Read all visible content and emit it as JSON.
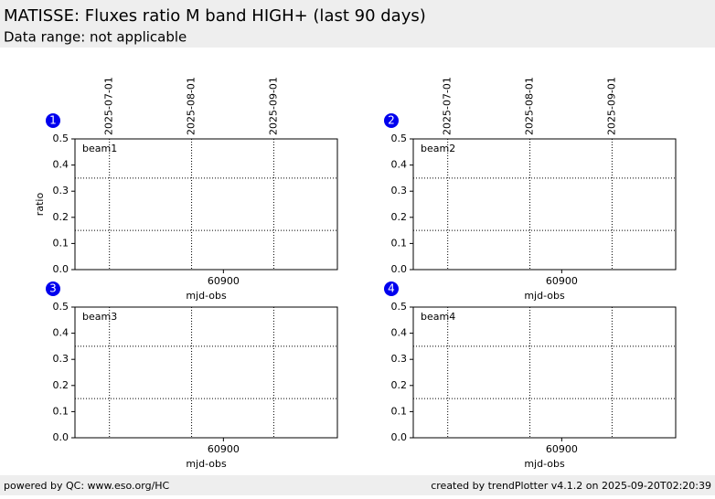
{
  "header": {
    "title": "MATISSE: Fluxes ratio M band HIGH+ (last 90 days)",
    "subtitle": "Data range: not applicable"
  },
  "footer": {
    "left": "powered by QC: www.eso.org/HC",
    "right": "created by trendPlotter v4.1.2 on 2025-09-20T02:20:39"
  },
  "chart_data": [
    {
      "type": "line",
      "badge": "1",
      "label": "beam1",
      "xlabel": "mjd-obs",
      "ylabel": "ratio",
      "series": [],
      "xlim": [
        60844,
        60943
      ],
      "xticks": [
        60900
      ],
      "x2ticks": [
        {
          "value": 60857,
          "label": "2025-07-01"
        },
        {
          "value": 60888,
          "label": "2025-08-01"
        },
        {
          "value": 60919,
          "label": "2025-09-01"
        }
      ],
      "ylim": [
        0,
        0.5
      ],
      "yticks": [
        {
          "value": 0,
          "label": "0.0"
        },
        0.1,
        0.2,
        0.3,
        0.4,
        0.5
      ],
      "reference_lines": [
        0.15,
        0.35
      ]
    },
    {
      "type": "line",
      "badge": "2",
      "label": "beam2",
      "xlabel": "mjd-obs",
      "series": [],
      "xlim": [
        60844,
        60943
      ],
      "xticks": [
        60900
      ],
      "x2ticks": [
        {
          "value": 60857,
          "label": "2025-07-01"
        },
        {
          "value": 60888,
          "label": "2025-08-01"
        },
        {
          "value": 60919,
          "label": "2025-09-01"
        }
      ],
      "ylim": [
        0,
        0.5
      ],
      "yticks": [
        {
          "value": 0,
          "label": "0.0"
        },
        0.1,
        0.2,
        0.3,
        0.4,
        0.5
      ],
      "reference_lines": [
        0.15,
        0.35
      ]
    },
    {
      "type": "line",
      "badge": "3",
      "label": "beam3",
      "xlabel": "mjd-obs",
      "series": [],
      "xlim": [
        60844,
        60943
      ],
      "xticks": [
        60900
      ],
      "ylim": [
        0,
        0.5
      ],
      "yticks": [
        {
          "value": 0,
          "label": "0.0"
        },
        0.1,
        0.2,
        0.3,
        0.4,
        0.5
      ],
      "reference_lines": [
        0.15,
        0.35
      ],
      "vlines": [
        60857,
        60888,
        60919
      ]
    },
    {
      "type": "line",
      "badge": "4",
      "label": "beam4",
      "xlabel": "mjd-obs",
      "series": [],
      "xlim": [
        60844,
        60943
      ],
      "xticks": [
        60900
      ],
      "ylim": [
        0,
        0.5
      ],
      "yticks": [
        {
          "value": 0,
          "label": "0.0"
        },
        0.1,
        0.2,
        0.3,
        0.4,
        0.5
      ],
      "reference_lines": [
        0.15,
        0.35
      ],
      "vlines": [
        60857,
        60888,
        60919
      ]
    }
  ]
}
